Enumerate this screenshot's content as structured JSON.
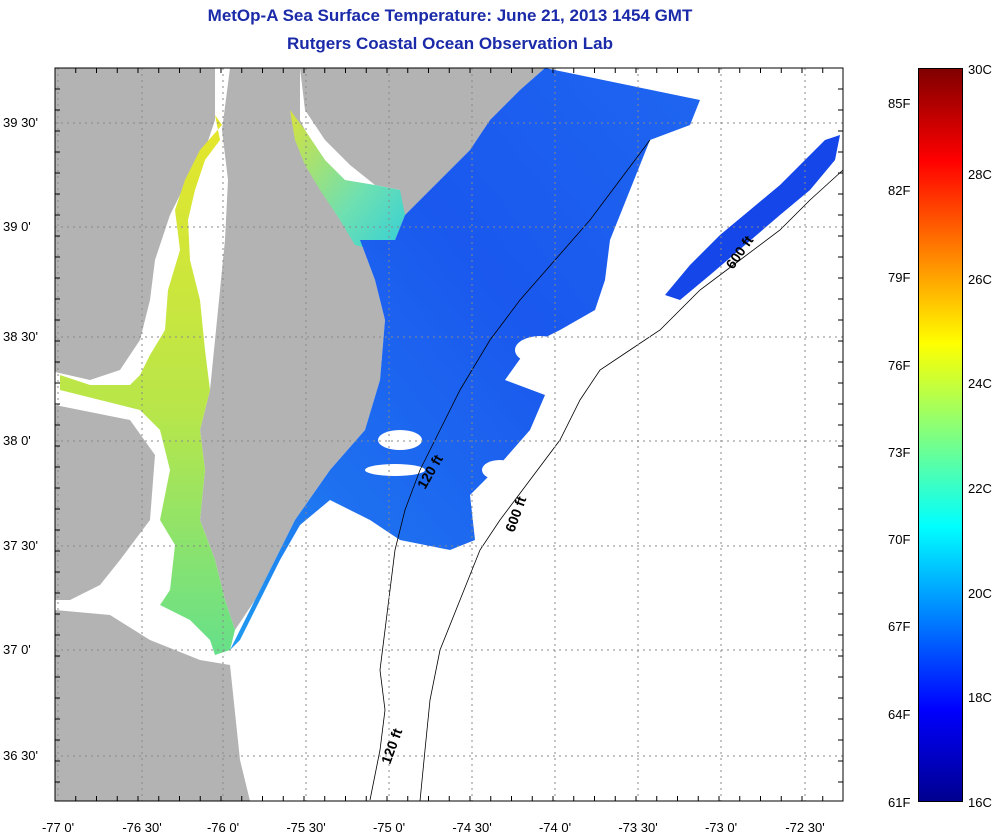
{
  "title": "MetOp-A Sea Surface Temperature:  June 21, 2013 1454 GMT",
  "subtitle": "Rutgers Coastal Ocean Observation Lab",
  "lat_ticks": [
    "39 30'",
    "39 0'",
    "38 30'",
    "38 0'",
    "37 30'",
    "37 0'",
    "36 30'"
  ],
  "lon_ticks": [
    "-77 0'",
    "-76 30'",
    "-76 0'",
    "-75 30'",
    "-75 0'",
    "-74 30'",
    "-74 0'",
    "-73 30'",
    "-73 0'",
    "-72 30'"
  ],
  "contour_labels": [
    "120 ft",
    "600 ft",
    "600 ft",
    "120 ft"
  ],
  "colorbar": {
    "fahrenheit": [
      "85F",
      "82F",
      "79F",
      "76F",
      "73F",
      "70F",
      "67F",
      "64F",
      "61F"
    ],
    "celsius": [
      "30C",
      "28C",
      "26C",
      "24C",
      "22C",
      "20C",
      "18C",
      "16C"
    ],
    "range_c": [
      16,
      30
    ]
  },
  "colors": {
    "title": "#1a2aa8",
    "land": "#b3b3b3",
    "no_data": "#ffffff",
    "colormap": [
      "#00008f",
      "#0000ff",
      "#0080ff",
      "#00ffff",
      "#80ff80",
      "#ffff00",
      "#ff8000",
      "#ff0000",
      "#800000"
    ]
  }
}
